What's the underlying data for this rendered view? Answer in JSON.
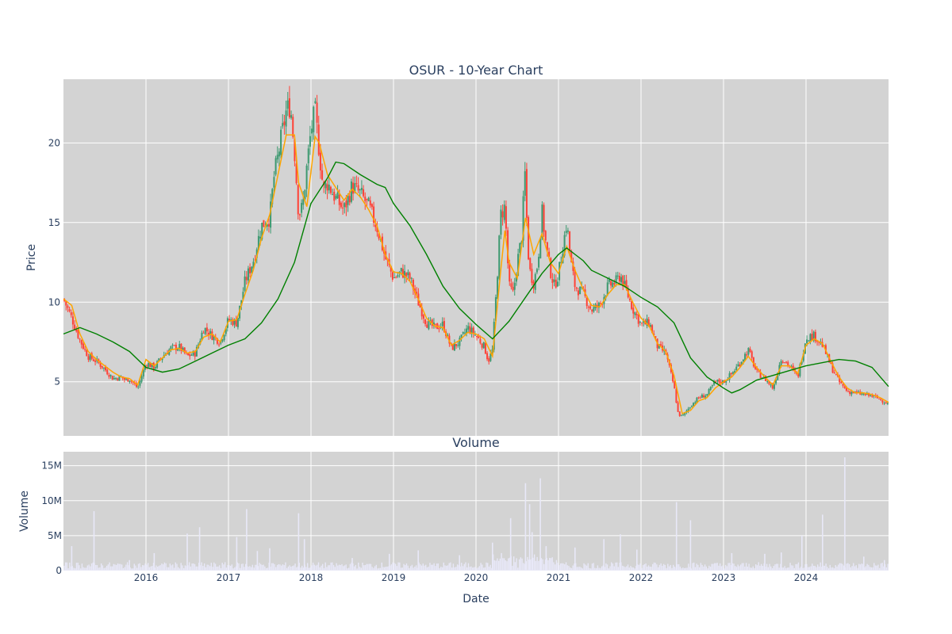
{
  "chart_data": [
    {
      "type": "candlestick",
      "title": "OSUR - 10-Year Chart",
      "ylabel": "Price",
      "xlabel": "",
      "x_range": [
        2015.0,
        2025.0
      ],
      "ylim": [
        1.6,
        24.0
      ],
      "y_ticks": [
        5,
        10,
        15,
        20
      ],
      "y_tick_labels": [
        "5",
        "10",
        "15",
        "20"
      ],
      "grid": true,
      "colors": {
        "up": "#3d9970",
        "down": "#ff4136",
        "ma_short": "#ffa500",
        "ma_long": "#008000",
        "plot_bg": "#d3d3d3",
        "grid": "#ffffff"
      },
      "price_series": [
        [
          2015.0,
          10.2
        ],
        [
          2015.1,
          9.0
        ],
        [
          2015.2,
          7.6
        ],
        [
          2015.3,
          6.6
        ],
        [
          2015.4,
          6.3
        ],
        [
          2015.5,
          5.8
        ],
        [
          2015.6,
          5.2
        ],
        [
          2015.7,
          5.3
        ],
        [
          2015.75,
          5.1
        ],
        [
          2015.8,
          5.2
        ],
        [
          2015.9,
          4.6
        ],
        [
          2016.0,
          6.2
        ],
        [
          2016.1,
          5.9
        ],
        [
          2016.2,
          6.6
        ],
        [
          2016.3,
          7.1
        ],
        [
          2016.4,
          7.2
        ],
        [
          2016.5,
          6.6
        ],
        [
          2016.6,
          6.8
        ],
        [
          2016.7,
          8.4
        ],
        [
          2016.8,
          7.9
        ],
        [
          2016.9,
          7.5
        ],
        [
          2017.0,
          8.9
        ],
        [
          2017.1,
          8.7
        ],
        [
          2017.2,
          11.3
        ],
        [
          2017.3,
          12.6
        ],
        [
          2017.4,
          14.8
        ],
        [
          2017.5,
          15.3
        ],
        [
          2017.55,
          17.8
        ],
        [
          2017.6,
          19.2
        ],
        [
          2017.65,
          20.6
        ],
        [
          2017.7,
          22.0
        ],
        [
          2017.75,
          22.4
        ],
        [
          2017.8,
          19.5
        ],
        [
          2017.85,
          15.5
        ],
        [
          2017.9,
          16.0
        ],
        [
          2017.95,
          18.5
        ],
        [
          2018.0,
          20.8
        ],
        [
          2018.05,
          22.0
        ],
        [
          2018.1,
          19.5
        ],
        [
          2018.15,
          17.0
        ],
        [
          2018.2,
          17.5
        ],
        [
          2018.25,
          17.0
        ],
        [
          2018.3,
          16.5
        ],
        [
          2018.4,
          15.8
        ],
        [
          2018.5,
          17.3
        ],
        [
          2018.6,
          16.8
        ],
        [
          2018.7,
          16.0
        ],
        [
          2018.8,
          14.7
        ],
        [
          2018.9,
          12.8
        ],
        [
          2019.0,
          11.5
        ],
        [
          2019.1,
          11.9
        ],
        [
          2019.2,
          11.5
        ],
        [
          2019.3,
          10.0
        ],
        [
          2019.4,
          8.7
        ],
        [
          2019.5,
          8.4
        ],
        [
          2019.6,
          8.6
        ],
        [
          2019.7,
          7.1
        ],
        [
          2019.8,
          7.5
        ],
        [
          2019.9,
          8.4
        ],
        [
          2020.0,
          7.9
        ],
        [
          2020.1,
          7.2
        ],
        [
          2020.15,
          6.3
        ],
        [
          2020.2,
          7.0
        ],
        [
          2020.25,
          11.0
        ],
        [
          2020.3,
          15.5
        ],
        [
          2020.35,
          16.0
        ],
        [
          2020.4,
          11.0
        ],
        [
          2020.45,
          10.5
        ],
        [
          2020.5,
          12.5
        ],
        [
          2020.55,
          14.0
        ],
        [
          2020.6,
          18.6
        ],
        [
          2020.62,
          14.0
        ],
        [
          2020.65,
          12.0
        ],
        [
          2020.7,
          11.2
        ],
        [
          2020.75,
          12.5
        ],
        [
          2020.8,
          15.7
        ],
        [
          2020.85,
          13.5
        ],
        [
          2020.9,
          12.0
        ],
        [
          2020.95,
          11.0
        ],
        [
          2021.0,
          11.8
        ],
        [
          2021.1,
          15.0
        ],
        [
          2021.15,
          12.5
        ],
        [
          2021.2,
          11.0
        ],
        [
          2021.3,
          10.5
        ],
        [
          2021.4,
          9.5
        ],
        [
          2021.5,
          9.8
        ],
        [
          2021.6,
          11.0
        ],
        [
          2021.7,
          11.3
        ],
        [
          2021.75,
          11.7
        ],
        [
          2021.8,
          11.0
        ],
        [
          2021.9,
          9.6
        ],
        [
          2022.0,
          8.6
        ],
        [
          2022.1,
          8.7
        ],
        [
          2022.2,
          7.2
        ],
        [
          2022.3,
          6.8
        ],
        [
          2022.4,
          4.7
        ],
        [
          2022.45,
          3.0
        ],
        [
          2022.5,
          2.8
        ],
        [
          2022.6,
          3.5
        ],
        [
          2022.7,
          4.0
        ],
        [
          2022.8,
          4.2
        ],
        [
          2022.9,
          5.0
        ],
        [
          2023.0,
          5.0
        ],
        [
          2023.1,
          5.5
        ],
        [
          2023.2,
          6.2
        ],
        [
          2023.3,
          7.0
        ],
        [
          2023.4,
          5.6
        ],
        [
          2023.5,
          5.2
        ],
        [
          2023.6,
          4.6
        ],
        [
          2023.7,
          6.5
        ],
        [
          2023.8,
          6.0
        ],
        [
          2023.9,
          5.3
        ],
        [
          2024.0,
          7.8
        ],
        [
          2024.1,
          7.9
        ],
        [
          2024.2,
          7.3
        ],
        [
          2024.3,
          6.0
        ],
        [
          2024.4,
          5.0
        ],
        [
          2024.5,
          4.4
        ],
        [
          2024.6,
          4.3
        ],
        [
          2024.7,
          4.2
        ],
        [
          2024.8,
          4.1
        ],
        [
          2024.9,
          3.9
        ],
        [
          2025.0,
          3.6
        ]
      ],
      "ma_short": [
        [
          2015.0,
          10.2
        ],
        [
          2015.1,
          9.8
        ],
        [
          2015.2,
          8.0
        ],
        [
          2015.3,
          6.9
        ],
        [
          2015.4,
          6.4
        ],
        [
          2015.5,
          6.0
        ],
        [
          2015.6,
          5.6
        ],
        [
          2015.7,
          5.3
        ],
        [
          2015.8,
          5.2
        ],
        [
          2015.9,
          4.8
        ],
        [
          2016.0,
          6.4
        ],
        [
          2016.1,
          6.0
        ],
        [
          2016.2,
          6.5
        ],
        [
          2016.3,
          7.0
        ],
        [
          2016.4,
          7.1
        ],
        [
          2016.5,
          6.8
        ],
        [
          2016.6,
          6.9
        ],
        [
          2016.7,
          7.8
        ],
        [
          2016.8,
          8.0
        ],
        [
          2016.9,
          7.5
        ],
        [
          2017.0,
          8.8
        ],
        [
          2017.1,
          8.9
        ],
        [
          2017.2,
          10.5
        ],
        [
          2017.3,
          12.0
        ],
        [
          2017.4,
          14.0
        ],
        [
          2017.5,
          15.5
        ],
        [
          2017.6,
          18.0
        ],
        [
          2017.7,
          20.5
        ],
        [
          2017.8,
          20.5
        ],
        [
          2017.85,
          17.5
        ],
        [
          2017.95,
          16.0
        ],
        [
          2018.05,
          20.4
        ],
        [
          2018.1,
          20.0
        ],
        [
          2018.2,
          18.0
        ],
        [
          2018.3,
          17.2
        ],
        [
          2018.4,
          16.4
        ],
        [
          2018.5,
          17.1
        ],
        [
          2018.6,
          16.6
        ],
        [
          2018.7,
          15.8
        ],
        [
          2018.8,
          14.8
        ],
        [
          2018.9,
          13.0
        ],
        [
          2019.0,
          11.9
        ],
        [
          2019.1,
          11.8
        ],
        [
          2019.2,
          11.3
        ],
        [
          2019.3,
          10.2
        ],
        [
          2019.4,
          9.0
        ],
        [
          2019.5,
          8.5
        ],
        [
          2019.6,
          8.4
        ],
        [
          2019.7,
          7.3
        ],
        [
          2019.8,
          7.6
        ],
        [
          2019.9,
          8.1
        ],
        [
          2020.0,
          8.0
        ],
        [
          2020.1,
          7.7
        ],
        [
          2020.2,
          6.6
        ],
        [
          2020.3,
          12.0
        ],
        [
          2020.35,
          14.5
        ],
        [
          2020.4,
          12.5
        ],
        [
          2020.5,
          11.5
        ],
        [
          2020.6,
          15.3
        ],
        [
          2020.7,
          13.0
        ],
        [
          2020.8,
          14.3
        ],
        [
          2020.9,
          12.5
        ],
        [
          2021.0,
          11.8
        ],
        [
          2021.1,
          13.5
        ],
        [
          2021.2,
          12.0
        ],
        [
          2021.3,
          10.8
        ],
        [
          2021.4,
          9.8
        ],
        [
          2021.5,
          9.7
        ],
        [
          2021.6,
          10.5
        ],
        [
          2021.7,
          11.1
        ],
        [
          2021.8,
          11.1
        ],
        [
          2021.9,
          10.0
        ],
        [
          2022.0,
          9.0
        ],
        [
          2022.1,
          8.5
        ],
        [
          2022.2,
          7.4
        ],
        [
          2022.3,
          6.9
        ],
        [
          2022.4,
          5.4
        ],
        [
          2022.5,
          3.0
        ],
        [
          2022.6,
          3.2
        ],
        [
          2022.7,
          3.8
        ],
        [
          2022.8,
          4.0
        ],
        [
          2022.9,
          4.6
        ],
        [
          2023.0,
          5.0
        ],
        [
          2023.1,
          5.3
        ],
        [
          2023.2,
          5.9
        ],
        [
          2023.3,
          6.6
        ],
        [
          2023.4,
          5.9
        ],
        [
          2023.5,
          5.3
        ],
        [
          2023.6,
          4.8
        ],
        [
          2023.7,
          6.0
        ],
        [
          2023.8,
          6.0
        ],
        [
          2023.9,
          5.5
        ],
        [
          2024.0,
          7.3
        ],
        [
          2024.1,
          7.7
        ],
        [
          2024.2,
          7.4
        ],
        [
          2024.3,
          6.3
        ],
        [
          2024.4,
          5.3
        ],
        [
          2024.5,
          4.6
        ],
        [
          2024.6,
          4.3
        ],
        [
          2024.7,
          4.3
        ],
        [
          2024.8,
          4.2
        ],
        [
          2024.9,
          4.0
        ],
        [
          2025.0,
          3.7
        ]
      ],
      "ma_long": [
        [
          2015.0,
          8.0
        ],
        [
          2015.2,
          8.4
        ],
        [
          2015.4,
          8.0
        ],
        [
          2015.6,
          7.5
        ],
        [
          2015.8,
          6.9
        ],
        [
          2016.0,
          5.9
        ],
        [
          2016.2,
          5.6
        ],
        [
          2016.4,
          5.8
        ],
        [
          2016.6,
          6.3
        ],
        [
          2016.8,
          6.8
        ],
        [
          2017.0,
          7.3
        ],
        [
          2017.2,
          7.7
        ],
        [
          2017.4,
          8.7
        ],
        [
          2017.6,
          10.2
        ],
        [
          2017.8,
          12.5
        ],
        [
          2018.0,
          16.2
        ],
        [
          2018.2,
          17.8
        ],
        [
          2018.3,
          18.8
        ],
        [
          2018.4,
          18.7
        ],
        [
          2018.6,
          18.0
        ],
        [
          2018.8,
          17.4
        ],
        [
          2018.9,
          17.2
        ],
        [
          2019.0,
          16.2
        ],
        [
          2019.2,
          14.8
        ],
        [
          2019.4,
          13.0
        ],
        [
          2019.6,
          11.0
        ],
        [
          2019.8,
          9.6
        ],
        [
          2020.0,
          8.6
        ],
        [
          2020.2,
          7.7
        ],
        [
          2020.4,
          8.8
        ],
        [
          2020.6,
          10.3
        ],
        [
          2020.8,
          11.8
        ],
        [
          2021.0,
          13.0
        ],
        [
          2021.1,
          13.4
        ],
        [
          2021.2,
          13.0
        ],
        [
          2021.3,
          12.6
        ],
        [
          2021.4,
          12.0
        ],
        [
          2021.6,
          11.5
        ],
        [
          2021.8,
          11.0
        ],
        [
          2022.0,
          10.3
        ],
        [
          2022.2,
          9.7
        ],
        [
          2022.4,
          8.7
        ],
        [
          2022.6,
          6.5
        ],
        [
          2022.8,
          5.3
        ],
        [
          2023.0,
          4.6
        ],
        [
          2023.1,
          4.3
        ],
        [
          2023.2,
          4.5
        ],
        [
          2023.4,
          5.1
        ],
        [
          2023.6,
          5.4
        ],
        [
          2023.8,
          5.7
        ],
        [
          2024.0,
          6.0
        ],
        [
          2024.2,
          6.2
        ],
        [
          2024.4,
          6.4
        ],
        [
          2024.6,
          6.3
        ],
        [
          2024.8,
          5.9
        ],
        [
          2025.0,
          4.7
        ]
      ]
    },
    {
      "type": "bar",
      "title": "Volume",
      "ylabel": "Volume",
      "xlabel": "Date",
      "x_range": [
        2015.0,
        2025.0
      ],
      "ylim": [
        0,
        17000000
      ],
      "y_ticks": [
        0,
        5000000,
        10000000,
        15000000
      ],
      "y_tick_labels": [
        "0",
        "5M",
        "10M",
        "15M"
      ],
      "x_ticks": [
        2016,
        2017,
        2018,
        2019,
        2020,
        2021,
        2022,
        2023,
        2024
      ],
      "x_tick_labels": [
        "2016",
        "2017",
        "2018",
        "2019",
        "2020",
        "2021",
        "2022",
        "2023",
        "2024"
      ],
      "grid": true,
      "bar_color": "#e8e8f8",
      "spikes": [
        [
          2015.1,
          3500000
        ],
        [
          2015.37,
          8500000
        ],
        [
          2015.8,
          1500000
        ],
        [
          2016.1,
          2500000
        ],
        [
          2016.5,
          5300000
        ],
        [
          2016.65,
          6200000
        ],
        [
          2017.1,
          4800000
        ],
        [
          2017.22,
          8800000
        ],
        [
          2017.35,
          2800000
        ],
        [
          2017.5,
          3200000
        ],
        [
          2017.85,
          8200000
        ],
        [
          2017.92,
          4500000
        ],
        [
          2018.5,
          1800000
        ],
        [
          2018.95,
          2400000
        ],
        [
          2019.3,
          2900000
        ],
        [
          2019.8,
          2200000
        ],
        [
          2020.2,
          4000000
        ],
        [
          2020.42,
          7500000
        ],
        [
          2020.6,
          12500000
        ],
        [
          2020.65,
          9500000
        ],
        [
          2020.68,
          5500000
        ],
        [
          2020.78,
          13200000
        ],
        [
          2020.85,
          3500000
        ],
        [
          2021.2,
          3300000
        ],
        [
          2021.55,
          4500000
        ],
        [
          2021.75,
          5200000
        ],
        [
          2021.95,
          3000000
        ],
        [
          2022.43,
          9800000
        ],
        [
          2022.6,
          7200000
        ],
        [
          2023.1,
          2500000
        ],
        [
          2023.5,
          2400000
        ],
        [
          2023.7,
          2600000
        ],
        [
          2023.95,
          5000000
        ],
        [
          2024.2,
          8000000
        ],
        [
          2024.47,
          16200000
        ],
        [
          2024.7,
          2000000
        ],
        [
          2024.95,
          1500000
        ]
      ]
    }
  ]
}
